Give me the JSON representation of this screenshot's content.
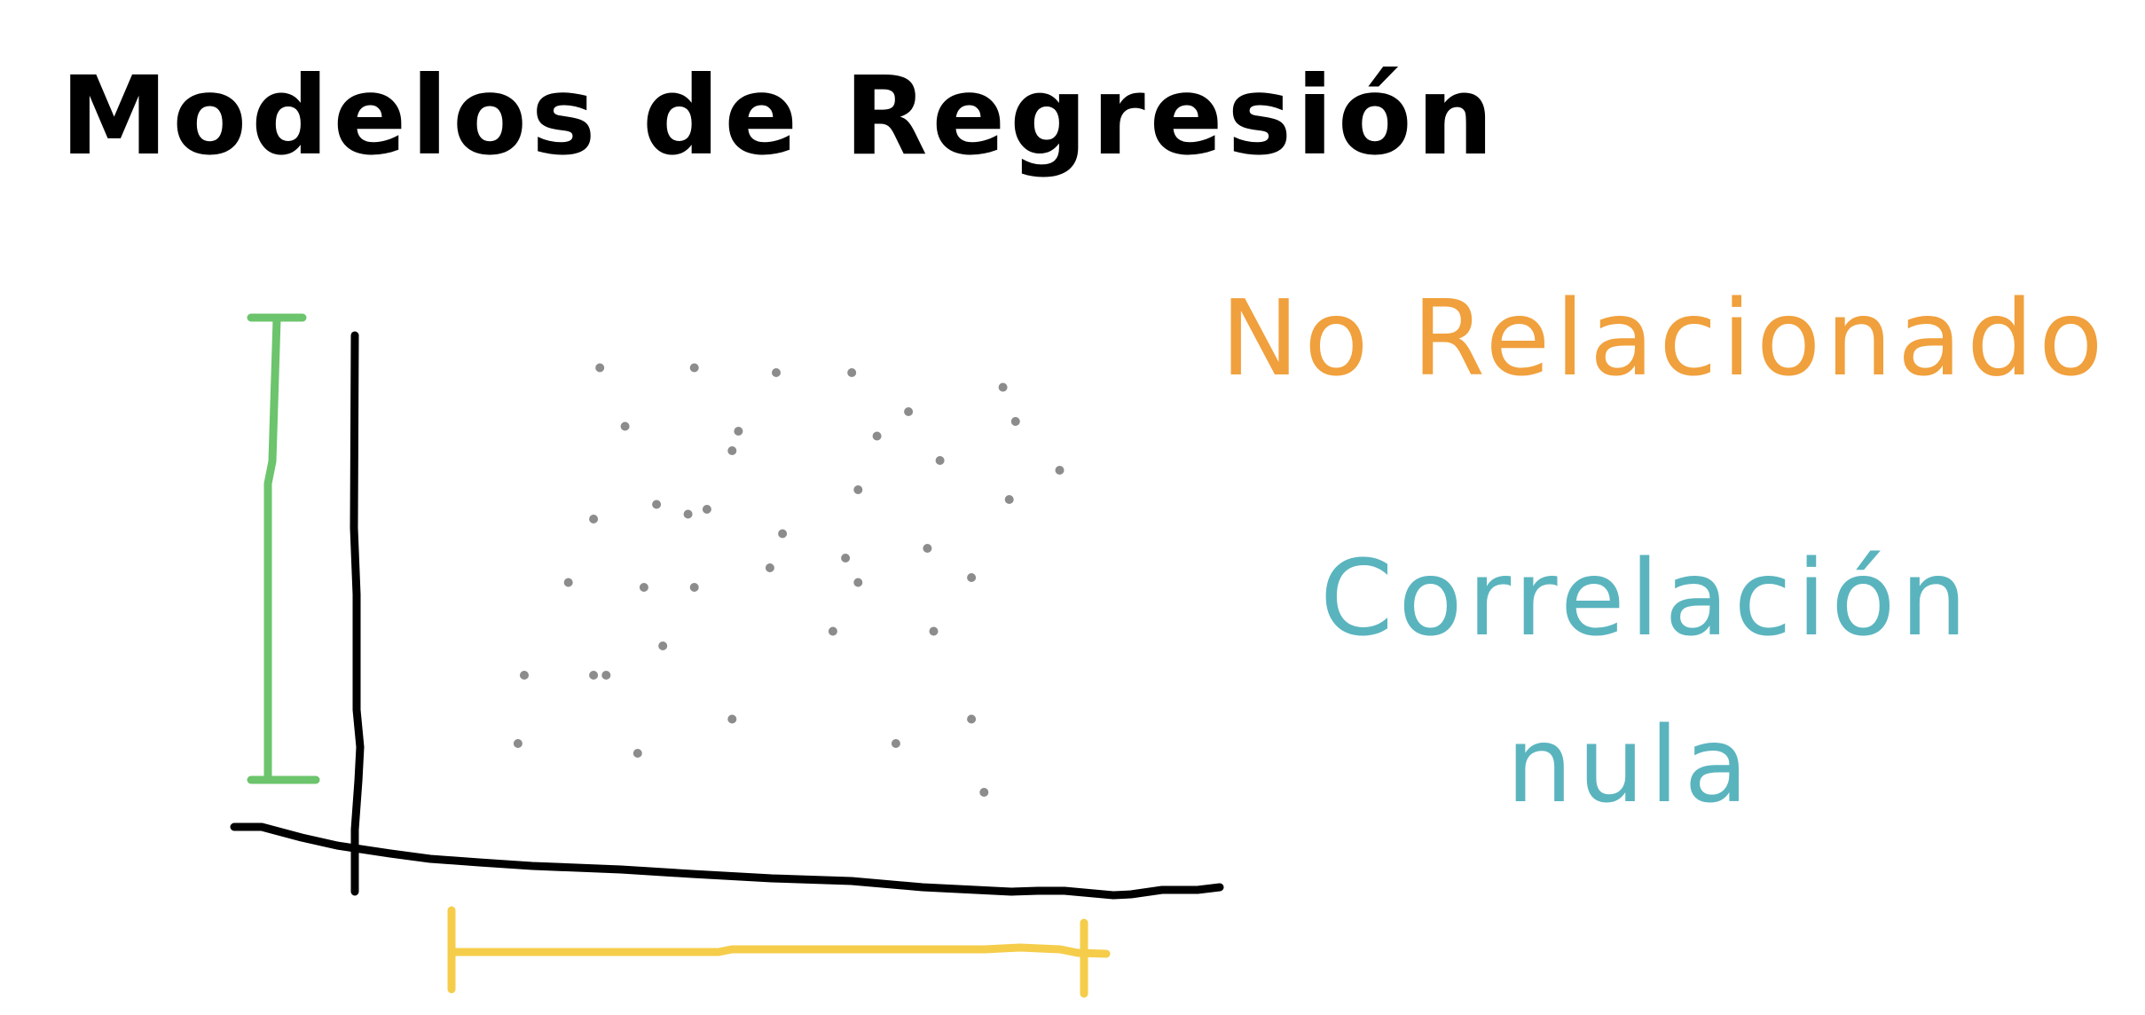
{
  "title": "Modelos de Regresión",
  "labels": {
    "unrelated": "No Relacionado",
    "correlation_line1": "Correlación",
    "correlation_line2": "nula"
  },
  "colors": {
    "ink": "#000000",
    "orange": "#f0a03c",
    "teal": "#5ab4be",
    "green": "#6cc46c",
    "yellow": "#f5cd4b",
    "points": "#8c8c8c"
  },
  "chart_data": {
    "type": "scatter",
    "points": [
      [
        0.1,
        0.72
      ],
      [
        0.23,
        0.72
      ],
      [
        0.44,
        0.22
      ],
      [
        0.62,
        0.1
      ],
      [
        0.76,
        0.28
      ],
      [
        0.88,
        0.2
      ],
      [
        0.95,
        0.3
      ],
      [
        0.36,
        0.39
      ],
      [
        0.32,
        0.66
      ],
      [
        0.51,
        0.43
      ],
      [
        0.63,
        0.53
      ],
      [
        0.59,
        0.63
      ],
      [
        0.28,
        0.88
      ],
      [
        0.09,
        0.86
      ],
      [
        0.17,
        0.53
      ],
      [
        0.37,
        0.54
      ],
      [
        0.49,
        0.5
      ],
      [
        0.63,
        0.34
      ],
      [
        0.81,
        0.52
      ],
      [
        0.71,
        0.18
      ],
      [
        0.43,
        0.81
      ],
      [
        0.31,
        0.37
      ],
      [
        0.37,
        0.09
      ],
      [
        0.87,
        0.36
      ],
      [
        0.66,
        0.23
      ],
      [
        0.69,
        0.86
      ],
      [
        0.39,
        0.38
      ],
      [
        0.29,
        0.54
      ],
      [
        0.5,
        0.1
      ],
      [
        0.26,
        0.21
      ],
      [
        0.43,
        0.26
      ],
      [
        0.81,
        0.81
      ],
      [
        0.21,
        0.4
      ],
      [
        0.83,
        0.96
      ],
      [
        0.75,
        0.63
      ],
      [
        0.74,
        0.46
      ],
      [
        0.22,
        0.09
      ],
      [
        0.21,
        0.72
      ],
      [
        0.86,
        0.13
      ],
      [
        0.61,
        0.48
      ]
    ]
  }
}
